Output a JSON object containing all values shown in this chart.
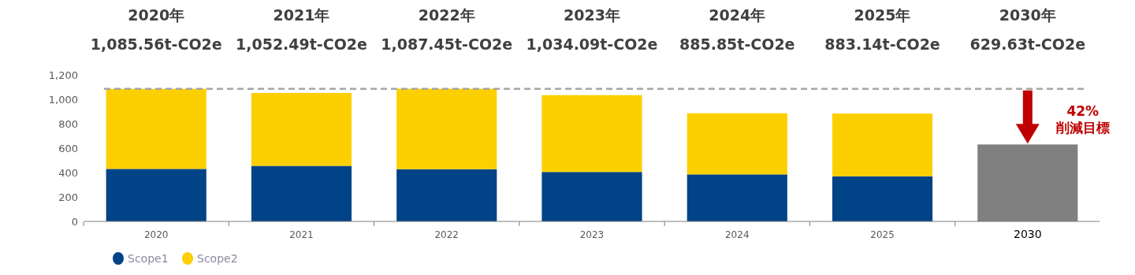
{
  "chart_data": {
    "type": "bar",
    "stacked": true,
    "categories": [
      "2020",
      "2021",
      "2022",
      "2023",
      "2024",
      "2025",
      "2030"
    ],
    "series": [
      {
        "name": "Scope1",
        "color": "#004386",
        "values": [
          430,
          455,
          428,
          405,
          385,
          370,
          null
        ]
      },
      {
        "name": "Scope2",
        "color": "#fcd000",
        "values": [
          656,
          597,
          659,
          629,
          501,
          513,
          null
        ]
      },
      {
        "color": "#808080",
        "values": [
          null,
          null,
          null,
          null,
          null,
          null,
          630
        ]
      }
    ],
    "ylim": [
      0,
      1200
    ],
    "yticks": [
      0,
      200,
      400,
      600,
      800,
      {
        "value": 1000,
        "label": "1,000"
      },
      {
        "value": 1200,
        "label": "1,200"
      }
    ],
    "annotations": [
      "2020年",
      "2021年",
      "2022年",
      "2023年",
      "2024年",
      "2025年",
      "2030年",
      "1,085.56t-CO2e",
      "1,052.49t-CO2e",
      "1,087.45t-CO2e",
      "1,034.09t-CO2e",
      "885.85t-CO2e",
      "883.14t-CO2e",
      "629.63t-CO2e",
      {
        "text": "42%\n削減目標",
        "x": "2030",
        "y": 1085.56
      }
    ],
    "ref_lines": [
      {
        "axis": "y",
        "value": 1085.56,
        "color": "#a6a6a6",
        "line_style": "dashed"
      }
    ],
    "legend": "bottom left",
    "grid": false
  }
}
